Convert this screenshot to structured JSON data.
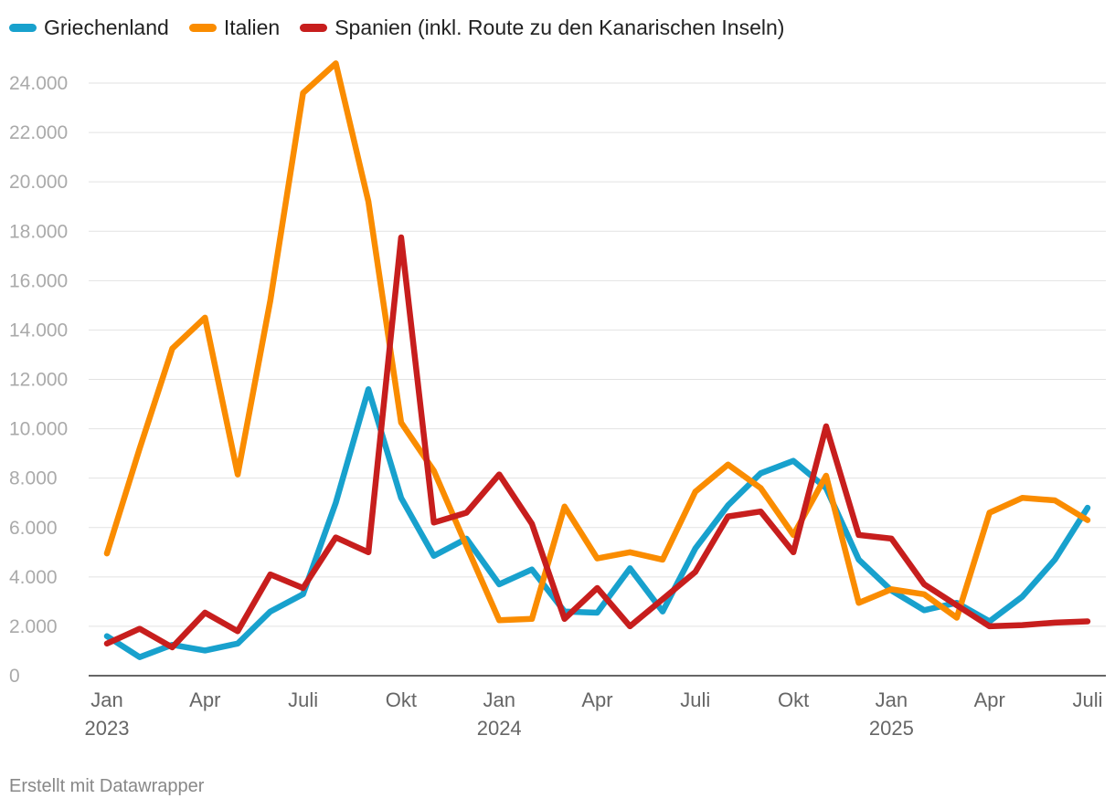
{
  "footer": {
    "credit": "Erstellt mit Datawrapper"
  },
  "chart_data": {
    "type": "line",
    "title": "",
    "xlabel": "",
    "ylabel": "",
    "ylim": [
      0,
      24000
    ],
    "yticks": [
      0,
      2000,
      4000,
      6000,
      8000,
      10000,
      12000,
      14000,
      16000,
      18000,
      20000,
      22000,
      24000
    ],
    "ytick_labels": [
      "0",
      "2.000",
      "4.000",
      "6.000",
      "8.000",
      "10.000",
      "12.000",
      "14.000",
      "16.000",
      "18.000",
      "20.000",
      "22.000",
      "24.000"
    ],
    "grid": true,
    "legend_position": "top-left",
    "x": [
      "2023-01",
      "2023-02",
      "2023-03",
      "2023-04",
      "2023-05",
      "2023-06",
      "2023-07",
      "2023-08",
      "2023-09",
      "2023-10",
      "2023-11",
      "2023-12",
      "2024-01",
      "2024-02",
      "2024-03",
      "2024-04",
      "2024-05",
      "2024-06",
      "2024-07",
      "2024-08",
      "2024-09",
      "2024-10",
      "2024-11",
      "2024-12",
      "2025-01",
      "2025-02",
      "2025-03",
      "2025-04",
      "2025-05",
      "2025-06",
      "2025-07"
    ],
    "xticks": [
      {
        "x": "2023-01",
        "label": "Jan",
        "year": "2023"
      },
      {
        "x": "2023-04",
        "label": "Apr",
        "year": ""
      },
      {
        "x": "2023-07",
        "label": "Juli",
        "year": ""
      },
      {
        "x": "2023-10",
        "label": "Okt",
        "year": ""
      },
      {
        "x": "2024-01",
        "label": "Jan",
        "year": "2024"
      },
      {
        "x": "2024-04",
        "label": "Apr",
        "year": ""
      },
      {
        "x": "2024-07",
        "label": "Juli",
        "year": ""
      },
      {
        "x": "2024-10",
        "label": "Okt",
        "year": ""
      },
      {
        "x": "2025-01",
        "label": "Jan",
        "year": "2025"
      },
      {
        "x": "2025-04",
        "label": "Apr",
        "year": ""
      },
      {
        "x": "2025-07",
        "label": "Juli",
        "year": ""
      }
    ],
    "series": [
      {
        "name": "Griechenland",
        "color": "#18a1cd",
        "values": [
          1600,
          750,
          1250,
          1020,
          1300,
          2600,
          3300,
          7000,
          11600,
          7200,
          4850,
          5550,
          3700,
          4300,
          2600,
          2550,
          4350,
          2600,
          5150,
          6900,
          8200,
          8700,
          7600,
          4700,
          3450,
          2650,
          2950,
          2200,
          3200,
          4700,
          6800
        ]
      },
      {
        "name": "Italien",
        "color": "#fa8c00",
        "values": [
          4950,
          9200,
          13250,
          14500,
          8150,
          15200,
          23600,
          24800,
          19200,
          10250,
          8300,
          5250,
          2250,
          2300,
          6850,
          4750,
          5000,
          4700,
          7450,
          8550,
          7600,
          5700,
          8100,
          2950,
          3500,
          3300,
          2350,
          6600,
          7200,
          7100,
          6300
        ]
      },
      {
        "name": "Spanien (inkl. Route zu den Kanarischen Inseln)",
        "color": "#c71e1d",
        "values": [
          1300,
          1900,
          1150,
          2550,
          1800,
          4100,
          3550,
          5600,
          5000,
          17750,
          6200,
          6600,
          8150,
          6150,
          2300,
          3550,
          2000,
          3100,
          4200,
          6450,
          6650,
          5000,
          10100,
          5700,
          5550,
          3700,
          2850,
          2000,
          2050,
          2150,
          2200
        ]
      }
    ]
  }
}
